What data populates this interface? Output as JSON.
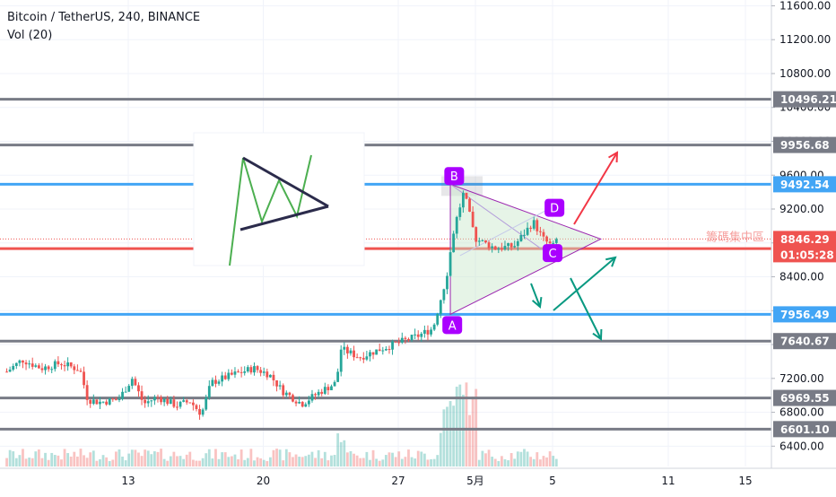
{
  "header": {
    "symbol_line": "Bitcoin / TetherUS, 240, BINANCE",
    "volume_line": "Vol (20)"
  },
  "colors": {
    "up": "#26a69a",
    "down": "#ef5350",
    "gray_level": "#787b86",
    "blue_level": "#42a5f5",
    "red_level": "#ef5350",
    "pattern_purple": "#9c27b0",
    "pattern_fill": "#e8f5e9",
    "label_purple": "#aa00ff",
    "arrow_red": "#f23645",
    "arrow_teal": "#089981",
    "current_price_bg": "#ef5350"
  },
  "chart_data": {
    "type": "candlestick",
    "ylim": [
      6250,
      11750
    ],
    "y_ticks": [
      6400,
      6800,
      7200,
      7600,
      8000,
      8400,
      8800,
      9200,
      9600,
      10000,
      10400,
      10800,
      11200,
      11600
    ],
    "y_tick_labels": [
      "6400.00",
      "6800.00",
      "7200.00",
      "7600.00",
      "8000.00",
      "8400.00",
      "8800.00",
      "9200.00",
      "9600.00",
      "10000.00",
      "10400.00",
      "10800.00",
      "11200.00",
      "11600.00"
    ],
    "x_ticks": [
      {
        "label": "13",
        "day": 13
      },
      {
        "label": "20",
        "day": 20
      },
      {
        "label": "27",
        "day": 27
      },
      {
        "label": "5月",
        "day": 31
      },
      {
        "label": "5",
        "day": 35
      },
      {
        "label": "11",
        "day": 41
      },
      {
        "label": "15",
        "day": 45
      }
    ],
    "levels": [
      {
        "value": 10496.21,
        "label": "10496.21",
        "kind": "gray"
      },
      {
        "value": 9956.68,
        "label": "9956.68",
        "kind": "gray"
      },
      {
        "value": 9492.54,
        "label": "9492.54",
        "kind": "blue"
      },
      {
        "value": 8732.88,
        "label": "8732.88",
        "kind": "red"
      },
      {
        "value": 7956.49,
        "label": "7956.49",
        "kind": "blue"
      },
      {
        "value": 7640.67,
        "label": "7640.67",
        "kind": "gray"
      },
      {
        "value": 6969.55,
        "label": "6969.55",
        "kind": "gray"
      },
      {
        "value": 6601.1,
        "label": "6601.10",
        "kind": "gray"
      }
    ],
    "current_price": {
      "value": 8846.29,
      "label": "8846.29",
      "countdown": "01:05:28"
    },
    "zone_label": "籌碼集中區",
    "close_path": [
      [
        6.7,
        7280
      ],
      [
        7.5,
        7420
      ],
      [
        8.5,
        7320
      ],
      [
        9.5,
        7380
      ],
      [
        10.5,
        7300
      ],
      [
        10.9,
        6950
      ],
      [
        11.5,
        6920
      ],
      [
        12.5,
        6950
      ],
      [
        13.2,
        7200
      ],
      [
        13.8,
        6900
      ],
      [
        14.5,
        6980
      ],
      [
        15.5,
        6880
      ],
      [
        16.2,
        6930
      ],
      [
        16.8,
        6780
      ],
      [
        17.3,
        7150
      ],
      [
        18.5,
        7250
      ],
      [
        19.5,
        7320
      ],
      [
        20.3,
        7250
      ],
      [
        21,
        7050
      ],
      [
        22,
        6900
      ],
      [
        23,
        7050
      ],
      [
        23.8,
        7150
      ],
      [
        24,
        7550
      ],
      [
        25,
        7450
      ],
      [
        26,
        7540
      ],
      [
        27,
        7620
      ],
      [
        28,
        7700
      ],
      [
        28.8,
        7790
      ],
      [
        29.5,
        8400
      ],
      [
        29.9,
        8980
      ],
      [
        30.4,
        9400
      ],
      [
        31,
        8850
      ],
      [
        32,
        8740
      ],
      [
        33,
        8760
      ],
      [
        34,
        9050
      ],
      [
        34.5,
        8850
      ],
      [
        35,
        8750
      ],
      [
        35.3,
        8846.29
      ]
    ],
    "annotations": {
      "triangle": {
        "A": [
          29.7,
          7956.49
        ],
        "B": [
          29.7,
          9492.54
        ],
        "apex": [
          37.5,
          8846
        ]
      },
      "labels": [
        {
          "text": "A",
          "day": 29.8,
          "value": 7830
        },
        {
          "text": "B",
          "day": 29.9,
          "value": 9590
        },
        {
          "text": "C",
          "day": 35.0,
          "value": 8680
        },
        {
          "text": "D",
          "day": 35.1,
          "value": 9215
        }
      ]
    }
  }
}
